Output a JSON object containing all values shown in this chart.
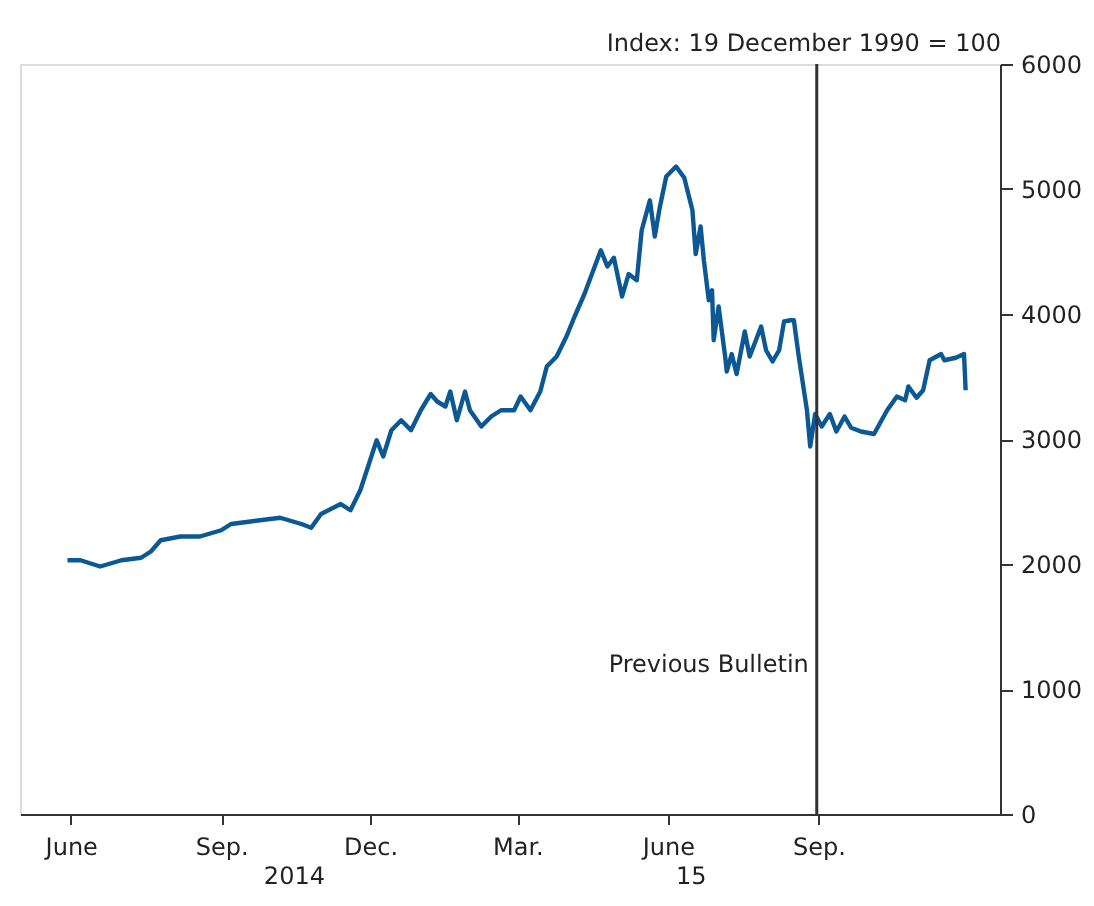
{
  "chart_data": {
    "type": "line",
    "ylabel": "Index:  19 December 1990 = 100",
    "x": [
      "2014-05-30",
      "2014-06-07",
      "2014-06-19",
      "2014-07-02",
      "2014-07-14",
      "2014-07-20",
      "2014-07-26",
      "2014-08-07",
      "2014-08-19",
      "2014-09-01",
      "2014-09-07",
      "2014-09-19",
      "2014-10-07",
      "2014-10-20",
      "2014-10-26",
      "2014-11-01",
      "2014-11-13",
      "2014-11-19",
      "2014-11-25",
      "2014-12-01",
      "2014-12-05",
      "2014-12-09",
      "2014-12-14",
      "2014-12-20",
      "2014-12-26",
      "2015-01-01",
      "2015-01-07",
      "2015-01-11",
      "2015-01-16",
      "2015-01-19",
      "2015-01-23",
      "2015-01-28",
      "2015-01-31",
      "2015-02-07",
      "2015-02-13",
      "2015-02-19",
      "2015-02-27",
      "2015-03-03",
      "2015-03-09",
      "2015-03-15",
      "2015-03-19",
      "2015-03-25",
      "2015-03-31",
      "2015-04-05",
      "2015-04-11",
      "2015-04-15",
      "2015-04-21",
      "2015-04-25",
      "2015-04-29",
      "2015-05-04",
      "2015-05-08",
      "2015-05-13",
      "2015-05-16",
      "2015-05-21",
      "2015-05-24",
      "2015-05-27",
      "2015-05-31",
      "2015-06-06",
      "2015-06-11",
      "2015-06-16",
      "2015-06-18",
      "2015-06-21",
      "2015-06-23",
      "2015-06-26",
      "2015-06-28",
      "2015-06-29",
      "2015-07-02",
      "2015-07-06",
      "2015-07-07",
      "2015-07-10",
      "2015-07-13",
      "2015-07-18",
      "2015-07-21",
      "2015-07-28",
      "2015-07-31",
      "2015-08-04",
      "2015-08-08",
      "2015-08-11",
      "2015-08-15",
      "2015-08-17",
      "2015-08-20",
      "2015-08-25",
      "2015-08-27",
      "2015-08-30",
      "2015-09-03",
      "2015-09-08",
      "2015-09-12",
      "2015-09-17",
      "2015-09-21",
      "2015-09-27",
      "2015-10-05",
      "2015-10-13",
      "2015-10-19",
      "2015-10-24",
      "2015-10-26",
      "2015-10-31",
      "2015-11-04",
      "2015-11-08",
      "2015-11-15",
      "2015-11-17",
      "2015-11-24",
      "2015-11-29",
      "2015-11-30"
    ],
    "series": [
      {
        "color": "#0b5894",
        "values": [
          2030,
          2030,
          1980,
          2030,
          2050,
          2100,
          2190,
          2220,
          2220,
          2270,
          2320,
          2340,
          2370,
          2320,
          2290,
          2400,
          2480,
          2430,
          2590,
          2830,
          2990,
          2860,
          3070,
          3150,
          3070,
          3230,
          3360,
          3300,
          3260,
          3380,
          3150,
          3380,
          3230,
          3100,
          3180,
          3230,
          3230,
          3340,
          3230,
          3380,
          3580,
          3660,
          3820,
          3980,
          4160,
          4300,
          4510,
          4380,
          4450,
          4140,
          4320,
          4270,
          4670,
          4910,
          4620,
          4850,
          5100,
          5180,
          5090,
          4830,
          4480,
          4700,
          4430,
          4110,
          4190,
          3790,
          4060,
          3660,
          3540,
          3680,
          3520,
          3860,
          3660,
          3900,
          3710,
          3620,
          3710,
          3940,
          3950,
          3950,
          3660,
          3230,
          2940,
          3200,
          3100,
          3200,
          3060,
          3180,
          3090,
          3060,
          3040,
          3230,
          3340,
          3310,
          3420,
          3330,
          3390,
          3630,
          3680,
          3630,
          3650,
          3680,
          3390
        ]
      }
    ],
    "xlim": [
      "2014-05-01",
      "2015-12-21"
    ],
    "xticks": [
      {
        "value": "2014-06-01",
        "label": "June"
      },
      {
        "value": "2014-09-01",
        "label": "Sep."
      },
      {
        "value": "2014-12-01",
        "label": "Dec."
      },
      {
        "value": "2015-03-01",
        "label": "Mar."
      },
      {
        "value": "2015-06-01",
        "label": "June"
      },
      {
        "value": "2015-09-01",
        "label": "Sep."
      }
    ],
    "ylim": [
      0,
      6000
    ],
    "yticks": [
      0,
      1000,
      2000,
      3000,
      4000,
      5000,
      6000
    ],
    "annotations": [
      "2014",
      "15"
    ],
    "ref_lines": [
      {
        "axis": "x",
        "value": "2015-08-31",
        "label": "Previous Bulletin",
        "color": "#333333"
      }
    ],
    "grid": false,
    "marker": "none",
    "line_style": "solid"
  }
}
